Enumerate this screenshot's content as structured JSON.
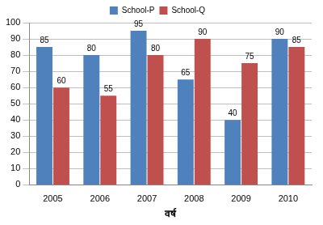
{
  "chart_data": {
    "type": "bar",
    "x_label": "वर्ष",
    "categories": [
      "2005",
      "2006",
      "2007",
      "2008",
      "2009",
      "2010"
    ],
    "series": [
      {
        "name": "School-P",
        "color": "#4f81bd",
        "values": [
          85,
          80,
          95,
          65,
          40,
          90
        ]
      },
      {
        "name": "School-Q",
        "color": "#c0504d",
        "values": [
          60,
          55,
          80,
          90,
          75,
          85
        ]
      }
    ],
    "ylim": [
      0,
      100
    ],
    "yticks": [
      0,
      10,
      20,
      30,
      40,
      50,
      60,
      70,
      80,
      90,
      100
    ],
    "grid": true,
    "legend": "top",
    "data_labels": true
  }
}
